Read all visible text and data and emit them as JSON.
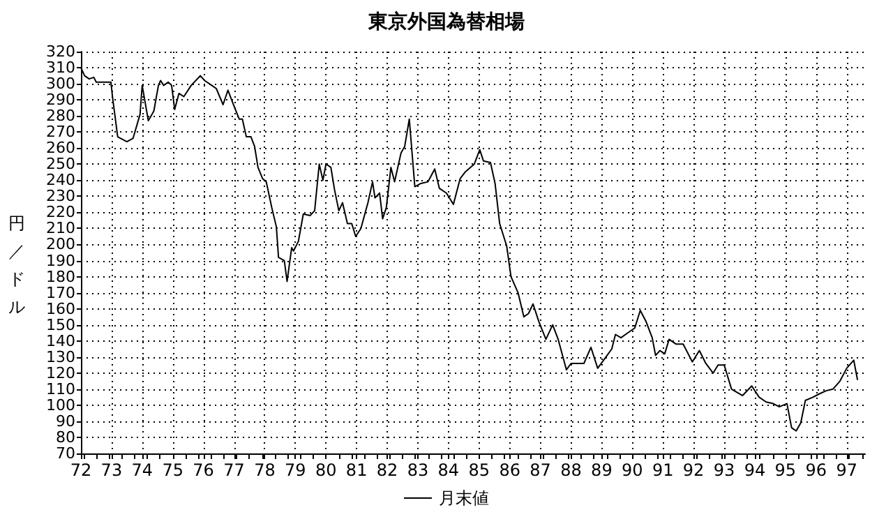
{
  "chart_data": {
    "type": "line",
    "title": "東京外国為替相場",
    "ylabel": "円／ドル",
    "xlim": [
      72,
      97.6
    ],
    "xticks": [
      72,
      73,
      74,
      75,
      76,
      77,
      78,
      79,
      80,
      81,
      82,
      83,
      84,
      85,
      86,
      87,
      88,
      89,
      90,
      91,
      92,
      93,
      94,
      95,
      96,
      97
    ],
    "ylim": [
      70,
      320
    ],
    "yticks": [
      70,
      80,
      90,
      100,
      110,
      120,
      130,
      140,
      150,
      160,
      170,
      180,
      190,
      200,
      210,
      220,
      230,
      240,
      250,
      260,
      270,
      280,
      290,
      300,
      310,
      320
    ],
    "grid": true,
    "legend": "bottom",
    "marker": "none",
    "line_style": "solid",
    "series": [
      {
        "name": "月末値",
        "color": "#000000",
        "x": [
          72.0,
          72.12,
          72.27,
          72.42,
          72.5,
          72.98,
          73.03,
          73.2,
          73.5,
          73.7,
          73.93,
          74.0,
          74.2,
          74.38,
          74.53,
          74.6,
          74.7,
          74.85,
          74.96,
          75.06,
          75.2,
          75.36,
          75.6,
          75.9,
          76.04,
          76.27,
          76.42,
          76.64,
          76.8,
          77.0,
          77.17,
          77.27,
          77.4,
          77.55,
          77.67,
          77.78,
          77.93,
          78.05,
          78.23,
          78.38,
          78.45,
          78.64,
          78.73,
          78.88,
          78.94,
          79.1,
          79.26,
          79.48,
          79.63,
          79.78,
          79.9,
          80.0,
          80.16,
          80.28,
          80.42,
          80.54,
          80.7,
          80.84,
          80.97,
          81.14,
          81.37,
          81.52,
          81.6,
          81.75,
          81.85,
          81.97,
          82.12,
          82.24,
          82.45,
          82.57,
          82.72,
          82.9,
          83.1,
          83.33,
          83.55,
          83.7,
          83.93,
          84.16,
          84.38,
          84.54,
          84.84,
          85.02,
          85.14,
          85.37,
          85.52,
          85.67,
          85.9,
          86.04,
          86.27,
          86.46,
          86.61,
          86.76,
          86.95,
          87.18,
          87.4,
          87.58,
          87.85,
          88.0,
          88.2,
          88.42,
          88.65,
          88.87,
          89.1,
          89.33,
          89.45,
          89.63,
          89.85,
          90.08,
          90.26,
          90.45,
          90.65,
          90.76,
          90.9,
          91.06,
          91.2,
          91.43,
          91.66,
          91.96,
          92.19,
          92.4,
          92.64,
          92.8,
          93.0,
          93.24,
          93.6,
          93.9,
          94.14,
          94.37,
          94.6,
          94.8,
          95.05,
          95.2,
          95.35,
          95.5,
          95.65,
          95.9,
          96.1,
          96.33,
          96.55,
          96.78,
          97.0,
          97.23,
          97.35
        ],
        "values": [
          310,
          305,
          303,
          304,
          301,
          301,
          292,
          267,
          264,
          266,
          281,
          299,
          277,
          283,
          299,
          302,
          299,
          301,
          299,
          284,
          294,
          292,
          299,
          305,
          302,
          299,
          297,
          287,
          296,
          286,
          278,
          278,
          267,
          267,
          261,
          248,
          241,
          239,
          223,
          211,
          192,
          190,
          177,
          198,
          196,
          202,
          219,
          218,
          221,
          250,
          240,
          250,
          248,
          234,
          221,
          226,
          213,
          213,
          205,
          210,
          226,
          239,
          229,
          232,
          216,
          223,
          248,
          239,
          257,
          261,
          278,
          236,
          238,
          239,
          247,
          235,
          232,
          225,
          241,
          245,
          250,
          259,
          252,
          251,
          238,
          213,
          199,
          180,
          170,
          155,
          157,
          163,
          152,
          141,
          150,
          141,
          122,
          126,
          126,
          126,
          136,
          123,
          129,
          135,
          144,
          142,
          145,
          148,
          159,
          152,
          142,
          131,
          134,
          132,
          141,
          138,
          138,
          127,
          134,
          126,
          120,
          125,
          125,
          110,
          106,
          112,
          105,
          102,
          101,
          99,
          101,
          86,
          84,
          89,
          103,
          105,
          107,
          109,
          110,
          115,
          123,
          128,
          116
        ]
      }
    ]
  }
}
